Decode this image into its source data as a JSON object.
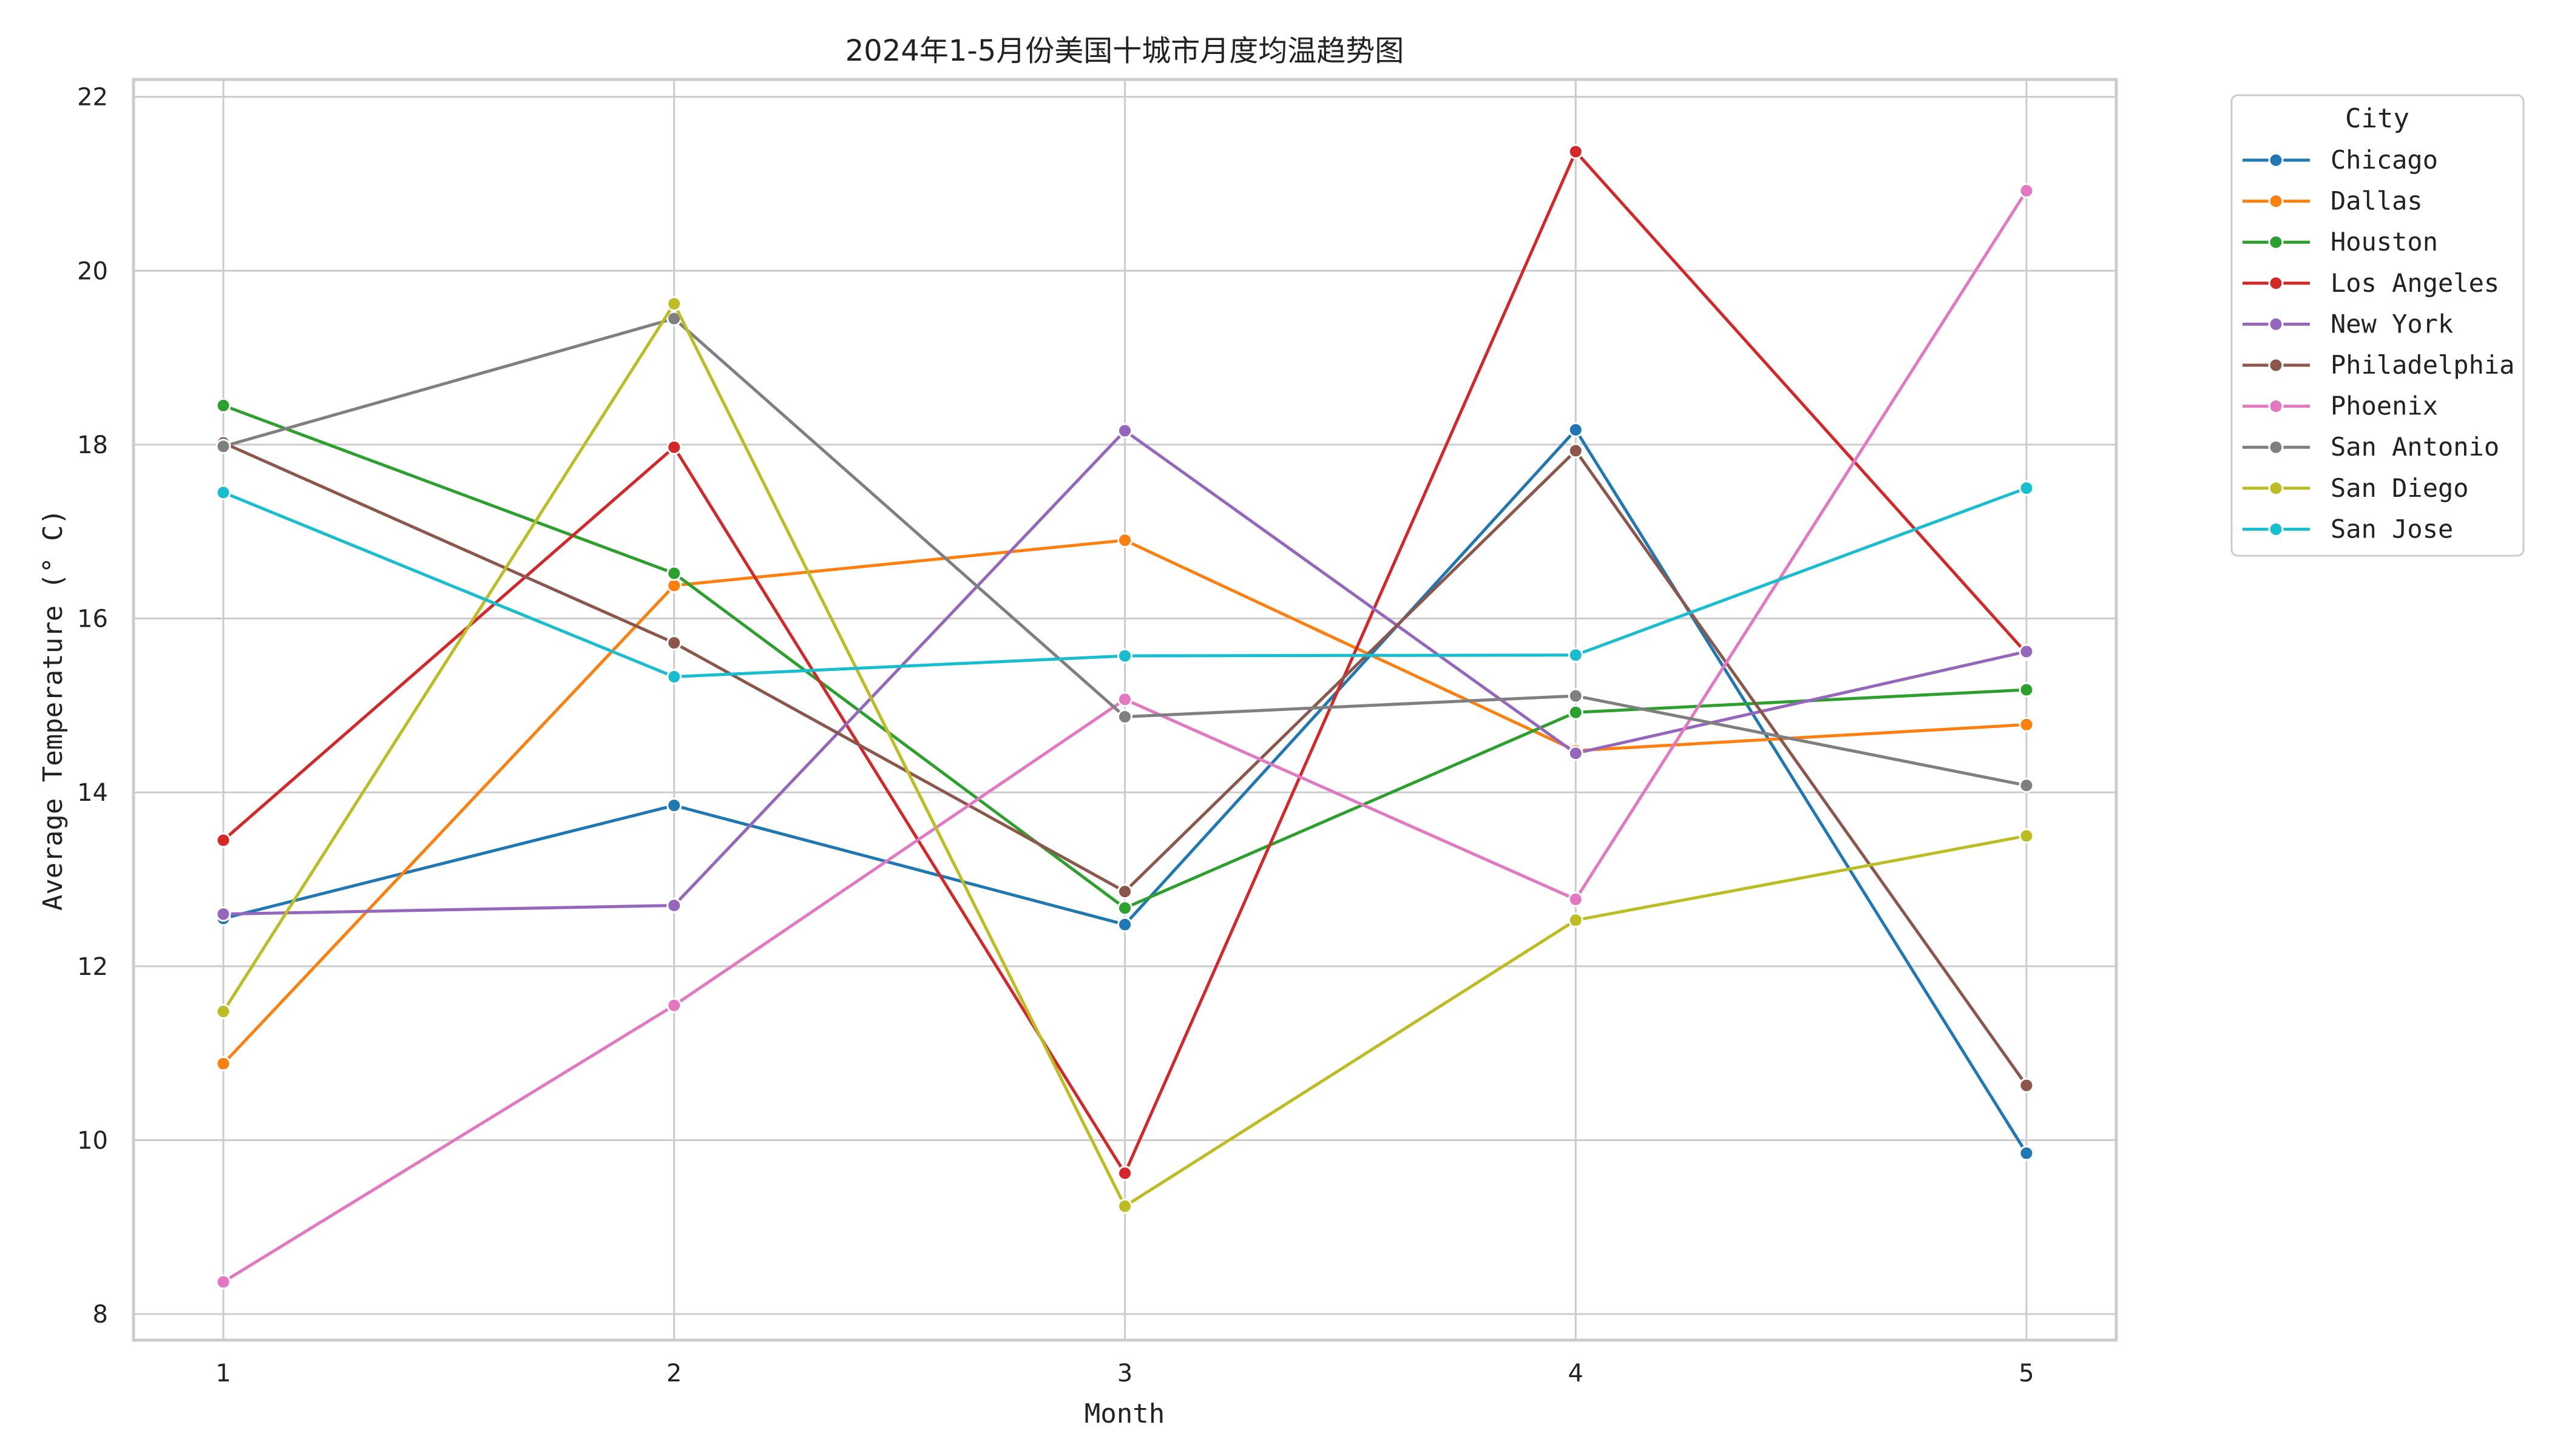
{
  "chart_data": {
    "type": "line",
    "title": "2024年1-5月份美国十城市月度均温趋势图",
    "xlabel": "Month",
    "ylabel": "Average Temperature (° C)",
    "x": [
      1,
      2,
      3,
      4,
      5
    ],
    "xticks": [
      "1",
      "2",
      "3",
      "4",
      "5"
    ],
    "ylim": [
      7.7,
      22.2
    ],
    "yticks": [
      8,
      10,
      12,
      14,
      16,
      18,
      20,
      22
    ],
    "grid": true,
    "markers": true,
    "legend_title": "City",
    "legend_position": "outside-top-right",
    "series": [
      {
        "name": "Chicago",
        "color": "#1f77b4",
        "values": [
          12.55,
          13.85,
          12.48,
          18.17,
          9.85
        ]
      },
      {
        "name": "Dallas",
        "color": "#ff7f0e",
        "values": [
          10.88,
          16.38,
          16.9,
          14.48,
          14.78
        ]
      },
      {
        "name": "Houston",
        "color": "#2ca02c",
        "values": [
          18.45,
          16.52,
          12.67,
          14.92,
          15.18
        ]
      },
      {
        "name": "Los Angeles",
        "color": "#d62728",
        "values": [
          13.45,
          17.97,
          9.62,
          21.37,
          15.6
        ]
      },
      {
        "name": "New York",
        "color": "#9467bd",
        "values": [
          12.6,
          12.7,
          18.16,
          14.45,
          15.62
        ]
      },
      {
        "name": "Philadelphia",
        "color": "#8c564b",
        "values": [
          18.02,
          15.72,
          12.86,
          17.93,
          10.63
        ]
      },
      {
        "name": "Phoenix",
        "color": "#e377c2",
        "values": [
          8.37,
          11.55,
          15.07,
          12.77,
          20.92
        ]
      },
      {
        "name": "San Antonio",
        "color": "#7f7f7f",
        "values": [
          17.98,
          19.45,
          14.87,
          15.11,
          14.08
        ]
      },
      {
        "name": "San Diego",
        "color": "#bcbd22",
        "values": [
          11.48,
          19.62,
          9.24,
          12.53,
          13.5
        ]
      },
      {
        "name": "San Jose",
        "color": "#17becf",
        "values": [
          17.45,
          15.33,
          15.57,
          15.58,
          17.5
        ]
      }
    ]
  }
}
